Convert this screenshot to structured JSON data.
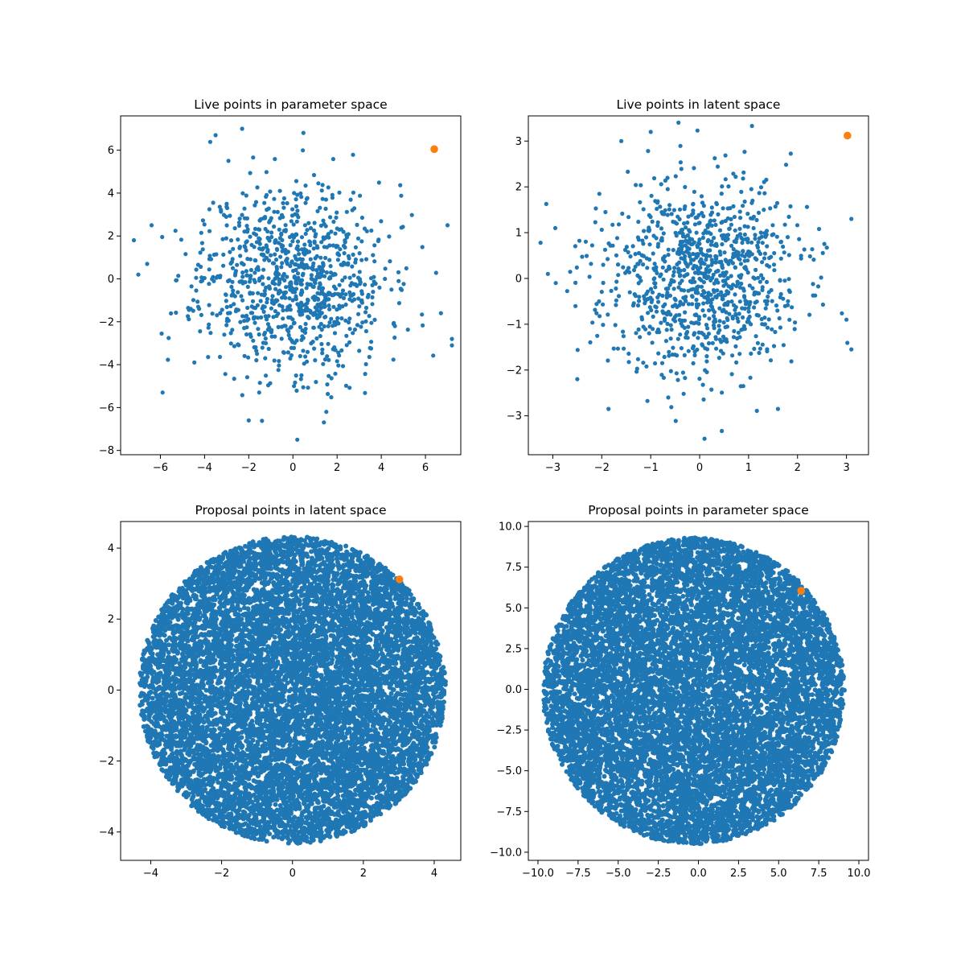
{
  "figure": {
    "rows": 2,
    "cols": 2
  },
  "colors": {
    "points": "#1f77b4",
    "highlight": "#ff7f0e"
  },
  "chart_data": [
    {
      "id": "live-param",
      "type": "scatter",
      "title": "Live points in parameter space",
      "xlim": [
        -7.8,
        7.6
      ],
      "ylim": [
        -8.2,
        7.6
      ],
      "xticks": [
        -6,
        -4,
        -2,
        0,
        2,
        4,
        6
      ],
      "yticks": [
        -8,
        -6,
        -4,
        -2,
        0,
        2,
        4,
        6
      ],
      "grid": false,
      "highlight_point": [
        6.4,
        6.05
      ],
      "distribution": {
        "kind": "gaussian",
        "count": 1000,
        "sigma": [
          2.1,
          2.2
        ],
        "seed": 11
      },
      "sample_points": [
        [
          -7.2,
          1.8
        ],
        [
          -7.0,
          0.2
        ],
        [
          -6.6,
          0.7
        ],
        [
          -6.4,
          2.5
        ],
        [
          -5.9,
          -5.3
        ],
        [
          -3.5,
          6.7
        ],
        [
          -2.3,
          7.0
        ],
        [
          7.0,
          2.5
        ],
        [
          7.2,
          -2.8
        ],
        [
          7.2,
          -3.1
        ],
        [
          0.2,
          -7.5
        ],
        [
          -2.0,
          -6.6
        ],
        [
          6.7,
          -1.6
        ]
      ]
    },
    {
      "id": "live-latent",
      "type": "scatter",
      "title": "Live points in latent space",
      "xlim": [
        -3.5,
        3.45
      ],
      "ylim": [
        -3.85,
        3.55
      ],
      "xticks": [
        -3,
        -2,
        -1,
        0,
        1,
        2,
        3
      ],
      "yticks": [
        -3,
        -2,
        -1,
        0,
        1,
        2,
        3
      ],
      "grid": false,
      "highlight_point": [
        3.02,
        3.12
      ],
      "distribution": {
        "kind": "gaussian",
        "count": 1000,
        "sigma": [
          1.0,
          1.05
        ],
        "seed": 23
      },
      "sample_points": [
        [
          -3.25,
          0.78
        ],
        [
          -3.1,
          0.1
        ],
        [
          -2.95,
          1.1
        ],
        [
          -1.6,
          3.0
        ],
        [
          -1.0,
          3.2
        ],
        [
          -2.5,
          -2.2
        ],
        [
          0.1,
          -3.5
        ],
        [
          3.1,
          -1.55
        ],
        [
          3.1,
          1.3
        ],
        [
          1.6,
          -2.85
        ],
        [
          3.0,
          -0.9
        ]
      ]
    },
    {
      "id": "proposal-latent",
      "type": "scatter",
      "title": "Proposal points in latent space",
      "xlim": [
        -4.85,
        4.75
      ],
      "ylim": [
        -4.8,
        4.75
      ],
      "xticks": [
        -4,
        -2,
        0,
        2,
        4
      ],
      "yticks": [
        -4,
        -2,
        0,
        2,
        4
      ],
      "grid": false,
      "highlight_point": [
        3.02,
        3.12
      ],
      "distribution": {
        "kind": "uniform-disk",
        "count": 10000,
        "center": [
          0,
          0
        ],
        "radius": 4.33,
        "seed": 37
      }
    },
    {
      "id": "proposal-param",
      "type": "scatter",
      "title": "Proposal points in parameter space",
      "xlim": [
        -10.6,
        10.6
      ],
      "ylim": [
        -10.5,
        10.3
      ],
      "xticks": [
        -10.0,
        -7.5,
        -5.0,
        -2.5,
        0.0,
        2.5,
        5.0,
        7.5,
        10.0
      ],
      "yticks": [
        -10.0,
        -7.5,
        -5.0,
        -2.5,
        0.0,
        2.5,
        5.0,
        7.5,
        10.0
      ],
      "grid": false,
      "highlight_point": [
        6.4,
        6.05
      ],
      "distribution": {
        "kind": "uniform-disk",
        "count": 10000,
        "center": [
          -0.3,
          -0.1
        ],
        "radius": 9.4,
        "seed": 53
      }
    }
  ]
}
